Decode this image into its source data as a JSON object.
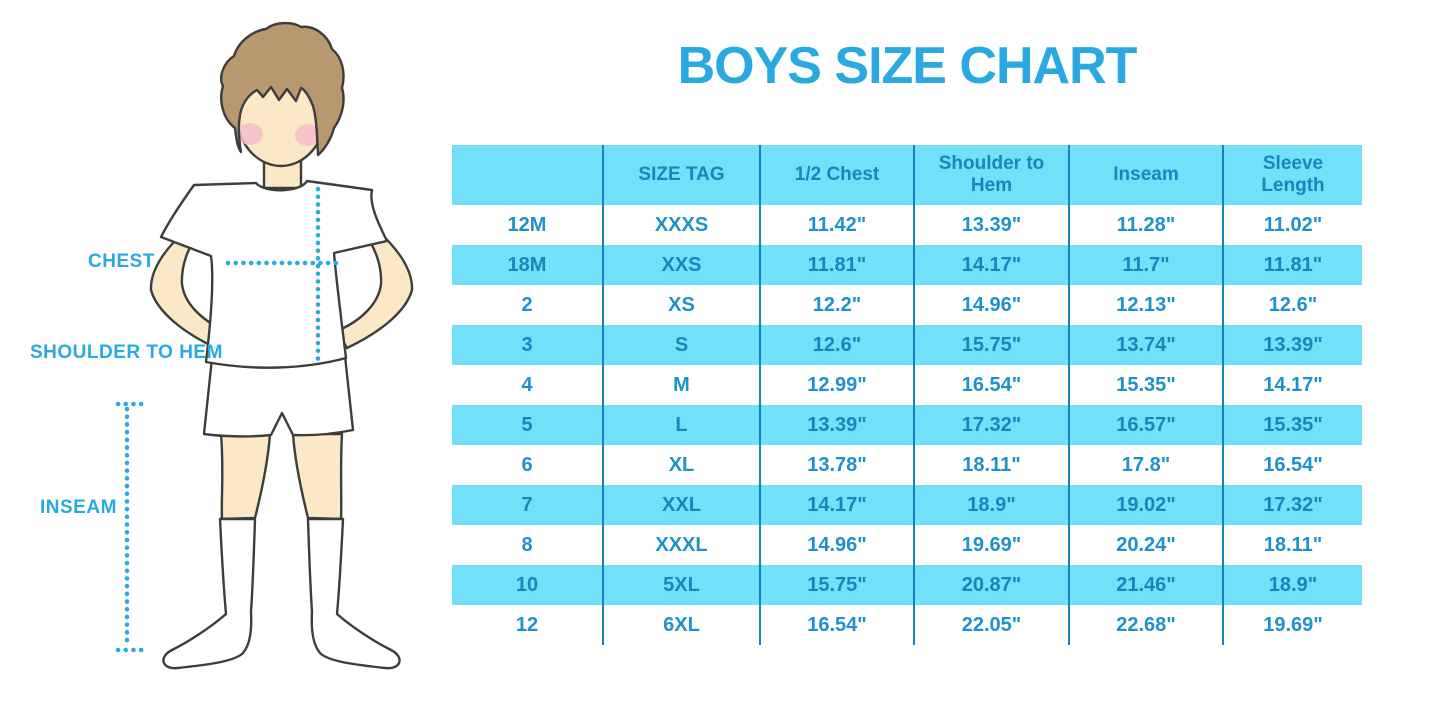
{
  "title": "BOYS SIZE CHART",
  "figure_labels": {
    "chest": "CHEST",
    "shoulder_to_hem": "SHOULDER TO HEM",
    "inseam": "INSEAM"
  },
  "chart_data": {
    "type": "table",
    "title": "BOYS SIZE CHART",
    "columns": [
      "",
      "SIZE TAG",
      "1/2 Chest",
      "Shoulder to Hem",
      "Inseam",
      "Sleeve Length"
    ],
    "rows": [
      [
        "12M",
        "XXXS",
        "11.42\"",
        "13.39\"",
        "11.28\"",
        "11.02\""
      ],
      [
        "18M",
        "XXS",
        "11.81\"",
        "14.17\"",
        "11.7\"",
        "11.81\""
      ],
      [
        "2",
        "XS",
        "12.2\"",
        "14.96\"",
        "12.13\"",
        "12.6\""
      ],
      [
        "3",
        "S",
        "12.6\"",
        "15.75\"",
        "13.74\"",
        "13.39\""
      ],
      [
        "4",
        "M",
        "12.99\"",
        "16.54\"",
        "15.35\"",
        "14.17\""
      ],
      [
        "5",
        "L",
        "13.39\"",
        "17.32\"",
        "16.57\"",
        "15.35\""
      ],
      [
        "6",
        "XL",
        "13.78\"",
        "18.11\"",
        "17.8\"",
        "16.54\""
      ],
      [
        "7",
        "XXL",
        "14.17\"",
        "18.9\"",
        "19.02\"",
        "17.32\""
      ],
      [
        "8",
        "XXXL",
        "14.96\"",
        "19.69\"",
        "20.24\"",
        "18.11\""
      ],
      [
        "10",
        "5XL",
        "15.75\"",
        "20.87\"",
        "21.46\"",
        "18.9\""
      ],
      [
        "12",
        "6XL",
        "16.54\"",
        "22.05\"",
        "22.68\"",
        "19.69\""
      ]
    ],
    "layout": {
      "striped_rows": true,
      "stripe_pattern": "even rows white, odd rows cyan starting with header cyan",
      "legend": "none",
      "grid": "vertical column dividers only"
    }
  },
  "colors": {
    "accent_blue": "#29A9E0",
    "table_fill_cyan": "#72E0F9",
    "table_divider": "#1583BA",
    "cell_text_on_white": "#1D92C8",
    "cell_text_on_cyan": "#1787BA",
    "skin": "#FBE8C6",
    "hair": "#B8986E",
    "blush": "#F5BECD"
  }
}
